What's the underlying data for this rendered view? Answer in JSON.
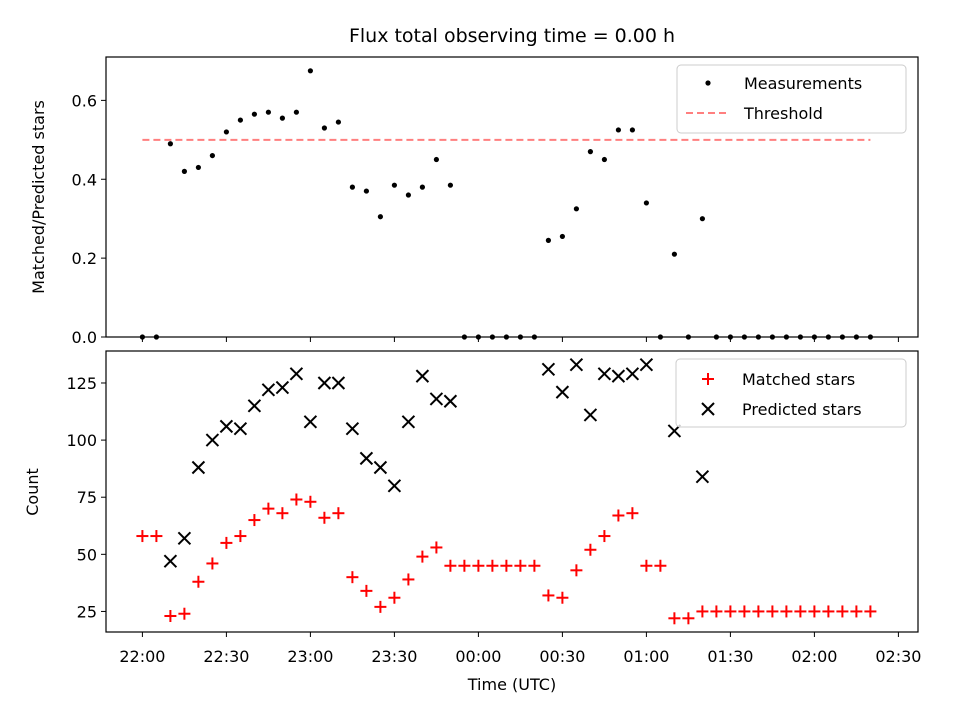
{
  "title": "Flux total observing time = 0.00 h",
  "colors": {
    "measurement": "#000000",
    "threshold": "#ff7f7f",
    "matched": "#ff0000",
    "predicted": "#000000"
  },
  "chart_data": [
    {
      "type": "scatter",
      "ylabel": "Matched/Predicted stars",
      "xlabel": "",
      "xlim": [
        "21:47",
        "02:37"
      ],
      "ylim": [
        0,
        0.71
      ],
      "yticks": [
        "0.0",
        "0.2",
        "0.4",
        "0.6"
      ],
      "legend_position": "top-right",
      "legend": [
        "Measurements",
        "Threshold"
      ],
      "series": [
        {
          "name": "Measurements",
          "marker": "dot",
          "points": [
            [
              "22:00",
              0.0
            ],
            [
              "22:05",
              0.0
            ],
            [
              "22:10",
              0.49
            ],
            [
              "22:15",
              0.42
            ],
            [
              "22:20",
              0.43
            ],
            [
              "22:25",
              0.46
            ],
            [
              "22:30",
              0.52
            ],
            [
              "22:35",
              0.55
            ],
            [
              "22:40",
              0.565
            ],
            [
              "22:45",
              0.57
            ],
            [
              "22:50",
              0.555
            ],
            [
              "22:55",
              0.57
            ],
            [
              "23:00",
              0.675
            ],
            [
              "23:05",
              0.53
            ],
            [
              "23:10",
              0.545
            ],
            [
              "23:15",
              0.38
            ],
            [
              "23:20",
              0.37
            ],
            [
              "23:25",
              0.305
            ],
            [
              "23:30",
              0.385
            ],
            [
              "23:35",
              0.36
            ],
            [
              "23:40",
              0.38
            ],
            [
              "23:45",
              0.45
            ],
            [
              "23:50",
              0.385
            ],
            [
              "23:55",
              0.0
            ],
            [
              "00:00",
              0.0
            ],
            [
              "00:05",
              0.0
            ],
            [
              "00:10",
              0.0
            ],
            [
              "00:15",
              0.0
            ],
            [
              "00:20",
              0.0
            ],
            [
              "00:25",
              0.245
            ],
            [
              "00:30",
              0.255
            ],
            [
              "00:35",
              0.325
            ],
            [
              "00:40",
              0.47
            ],
            [
              "00:45",
              0.45
            ],
            [
              "00:50",
              0.525
            ],
            [
              "00:55",
              0.525
            ],
            [
              "01:00",
              0.34
            ],
            [
              "01:05",
              0.0
            ],
            [
              "01:10",
              0.21
            ],
            [
              "01:15",
              0.0
            ],
            [
              "01:20",
              0.3
            ],
            [
              "01:25",
              0.0
            ],
            [
              "01:30",
              0.0
            ],
            [
              "01:35",
              0.0
            ],
            [
              "01:40",
              0.0
            ],
            [
              "01:45",
              0.0
            ],
            [
              "01:50",
              0.0
            ],
            [
              "01:55",
              0.0
            ],
            [
              "02:00",
              0.0
            ],
            [
              "02:05",
              0.0
            ],
            [
              "02:10",
              0.0
            ],
            [
              "02:15",
              0.0
            ],
            [
              "02:20",
              0.0
            ]
          ]
        },
        {
          "name": "Threshold",
          "style": "dashed-line",
          "points": [
            [
              "22:00",
              0.5
            ],
            [
              "02:20",
              0.5
            ]
          ]
        }
      ]
    },
    {
      "type": "scatter",
      "xlabel": "Time (UTC)",
      "ylabel": "Count",
      "xlim": [
        "21:47",
        "02:37"
      ],
      "ylim": [
        16,
        139
      ],
      "yticks": [
        "25",
        "50",
        "75",
        "100",
        "125"
      ],
      "xticks": [
        "22:00",
        "22:30",
        "23:00",
        "23:30",
        "00:00",
        "00:30",
        "01:00",
        "01:30",
        "02:00",
        "02:30"
      ],
      "legend_position": "top-right",
      "legend": [
        "Matched stars",
        "Predicted stars"
      ],
      "series": [
        {
          "name": "Matched stars",
          "marker": "plus",
          "points": [
            [
              "22:00",
              58
            ],
            [
              "22:05",
              58
            ],
            [
              "22:10",
              23
            ],
            [
              "22:15",
              24
            ],
            [
              "22:20",
              38
            ],
            [
              "22:25",
              46
            ],
            [
              "22:30",
              55
            ],
            [
              "22:35",
              58
            ],
            [
              "22:40",
              65
            ],
            [
              "22:45",
              70
            ],
            [
              "22:50",
              68
            ],
            [
              "22:55",
              74
            ],
            [
              "23:00",
              73
            ],
            [
              "23:05",
              66
            ],
            [
              "23:10",
              68
            ],
            [
              "23:15",
              40
            ],
            [
              "23:20",
              34
            ],
            [
              "23:25",
              27
            ],
            [
              "23:30",
              31
            ],
            [
              "23:35",
              39
            ],
            [
              "23:40",
              49
            ],
            [
              "23:45",
              53
            ],
            [
              "23:50",
              45
            ],
            [
              "23:55",
              45
            ],
            [
              "00:00",
              45
            ],
            [
              "00:05",
              45
            ],
            [
              "00:10",
              45
            ],
            [
              "00:15",
              45
            ],
            [
              "00:20",
              45
            ],
            [
              "00:25",
              32
            ],
            [
              "00:30",
              31
            ],
            [
              "00:35",
              43
            ],
            [
              "00:40",
              52
            ],
            [
              "00:45",
              58
            ],
            [
              "00:50",
              67
            ],
            [
              "00:55",
              68
            ],
            [
              "01:00",
              45
            ],
            [
              "01:05",
              45
            ],
            [
              "01:10",
              22
            ],
            [
              "01:15",
              22
            ],
            [
              "01:20",
              25
            ],
            [
              "01:25",
              25
            ],
            [
              "01:30",
              25
            ],
            [
              "01:35",
              25
            ],
            [
              "01:40",
              25
            ],
            [
              "01:45",
              25
            ],
            [
              "01:50",
              25
            ],
            [
              "01:55",
              25
            ],
            [
              "02:00",
              25
            ],
            [
              "02:05",
              25
            ],
            [
              "02:10",
              25
            ],
            [
              "02:15",
              25
            ],
            [
              "02:20",
              25
            ]
          ]
        },
        {
          "name": "Predicted stars",
          "marker": "x",
          "points": [
            [
              "22:10",
              47
            ],
            [
              "22:15",
              57
            ],
            [
              "22:20",
              88
            ],
            [
              "22:25",
              100
            ],
            [
              "22:30",
              106
            ],
            [
              "22:35",
              105
            ],
            [
              "22:40",
              115
            ],
            [
              "22:45",
              122
            ],
            [
              "22:50",
              123
            ],
            [
              "22:55",
              129
            ],
            [
              "23:00",
              108
            ],
            [
              "23:05",
              125
            ],
            [
              "23:10",
              125
            ],
            [
              "23:15",
              105
            ],
            [
              "23:20",
              92
            ],
            [
              "23:25",
              88
            ],
            [
              "23:30",
              80
            ],
            [
              "23:35",
              108
            ],
            [
              "23:40",
              128
            ],
            [
              "23:45",
              118
            ],
            [
              "23:50",
              117
            ],
            [
              "00:25",
              131
            ],
            [
              "00:30",
              121
            ],
            [
              "00:35",
              133
            ],
            [
              "00:40",
              111
            ],
            [
              "00:45",
              129
            ],
            [
              "00:50",
              128
            ],
            [
              "00:55",
              129
            ],
            [
              "01:00",
              133
            ],
            [
              "01:10",
              104
            ],
            [
              "01:20",
              84
            ]
          ]
        }
      ]
    }
  ]
}
